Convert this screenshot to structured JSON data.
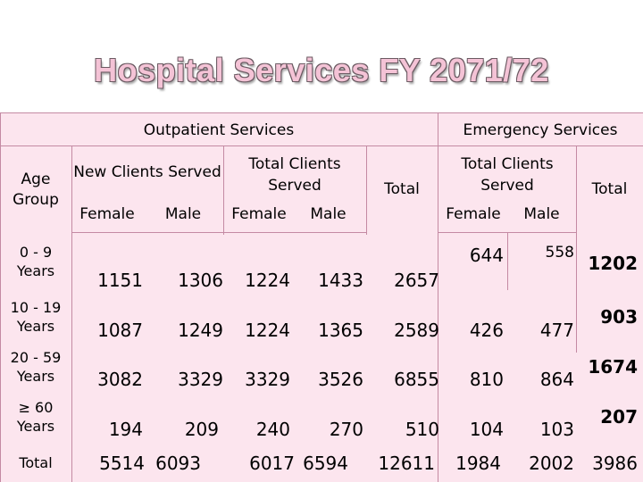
{
  "title": "Hospital Services FY 2071/72",
  "headers": {
    "outpatient": "Outpatient Services",
    "emergency": "Emergency Services",
    "age_group": "Age Group",
    "new_clients": "New Clients Served",
    "total_clients": "Total Clients Served",
    "total": "Total",
    "female": "Female",
    "male": "Male"
  },
  "rows": [
    {
      "label": "0 - 9 Years",
      "op_new_female": "1151",
      "op_new_male": "1306",
      "op_tot_female": "1224",
      "op_tot_male": "1433",
      "op_total": "2657",
      "em_female": "644",
      "em_male": "558",
      "em_total": "1202"
    },
    {
      "label": "10 - 19 Years",
      "op_new_female": "1087",
      "op_new_male": "1249",
      "op_tot_female": "1224",
      "op_tot_male": "1365",
      "op_total": "2589",
      "em_female": "426",
      "em_male": "477",
      "em_total": "903"
    },
    {
      "label": "20 - 59 Years",
      "op_new_female": "3082",
      "op_new_male": "3329",
      "op_tot_female": "3329",
      "op_tot_male": "3526",
      "op_total": "6855",
      "em_female": "810",
      "em_male": "864",
      "em_total": "1674"
    },
    {
      "label": "≥ 60 Years",
      "op_new_female": "194",
      "op_new_male": "209",
      "op_tot_female": "240",
      "op_tot_male": "270",
      "op_total": "510",
      "em_female": "104",
      "em_male": "103",
      "em_total": "207"
    },
    {
      "label": "Total",
      "op_new_female": "5514",
      "op_new_male": "6093",
      "op_tot_female": "6017",
      "op_tot_male": "6594",
      "op_total": "12611",
      "em_female": "1984",
      "em_male": "2002",
      "em_total": "3986"
    }
  ]
}
